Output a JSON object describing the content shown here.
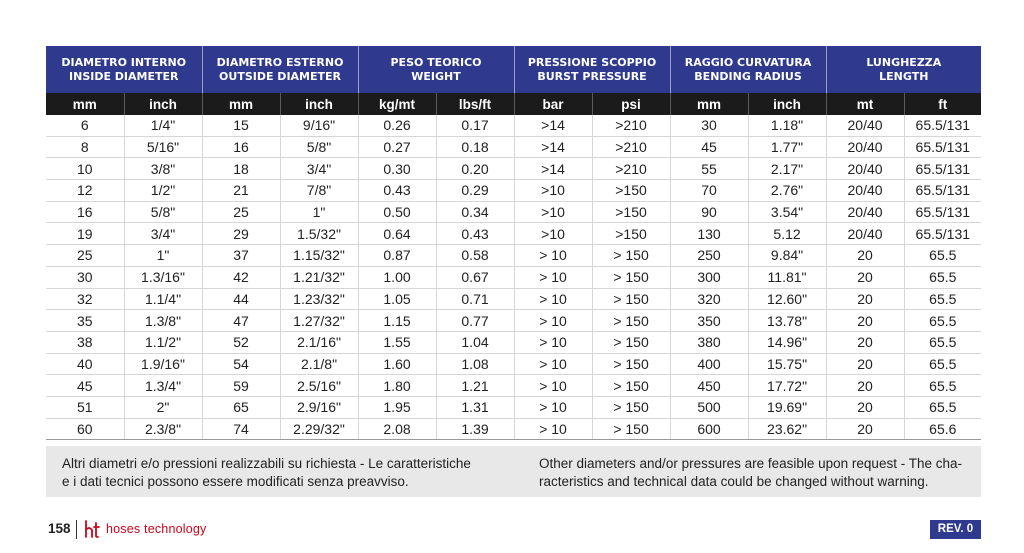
{
  "table": {
    "groups": [
      {
        "it": "DIAMETRO INTERNO",
        "en": "INSIDE DIAMETER"
      },
      {
        "it": "DIAMETRO ESTERNO",
        "en": "OUTSIDE DIAMETER"
      },
      {
        "it": "PESO TEORICO",
        "en": "WEIGHT"
      },
      {
        "it": "PRESSIONE SCOPPIO",
        "en": "BURST PRESSURE"
      },
      {
        "it": "RAGGIO CURVATURA",
        "en": "BENDING RADIUS"
      },
      {
        "it": "LUNGHEZZA",
        "en": "LENGTH"
      }
    ],
    "units": [
      "mm",
      "inch",
      "mm",
      "inch",
      "kg/mt",
      "lbs/ft",
      "bar",
      "psi",
      "mm",
      "inch",
      "mt",
      "ft"
    ],
    "rows": [
      [
        "6",
        "1/4\"",
        "15",
        "9/16\"",
        "0.26",
        "0.17",
        ">14",
        ">210",
        "30",
        "1.18\"",
        "20/40",
        "65.5/131"
      ],
      [
        "8",
        "5/16\"",
        "16",
        "5/8\"",
        "0.27",
        "0.18",
        ">14",
        ">210",
        "45",
        "1.77\"",
        "20/40",
        "65.5/131"
      ],
      [
        "10",
        "3/8\"",
        "18",
        "3/4\"",
        "0.30",
        "0.20",
        ">14",
        ">210",
        "55",
        "2.17\"",
        "20/40",
        "65.5/131"
      ],
      [
        "12",
        "1/2\"",
        "21",
        "7/8\"",
        "0.43",
        "0.29",
        ">10",
        ">150",
        "70",
        "2.76\"",
        "20/40",
        "65.5/131"
      ],
      [
        "16",
        "5/8\"",
        "25",
        "1\"",
        "0.50",
        "0.34",
        ">10",
        ">150",
        "90",
        "3.54\"",
        "20/40",
        "65.5/131"
      ],
      [
        "19",
        "3/4\"",
        "29",
        "1.5/32\"",
        "0.64",
        "0.43",
        ">10",
        ">150",
        "130",
        "5.12",
        "20/40",
        "65.5/131"
      ],
      [
        "25",
        "1\"",
        "37",
        "1.15/32\"",
        "0.87",
        "0.58",
        "> 10",
        "> 150",
        "250",
        "9.84\"",
        "20",
        "65.5"
      ],
      [
        "30",
        "1.3/16\"",
        "42",
        "1.21/32\"",
        "1.00",
        "0.67",
        "> 10",
        "> 150",
        "300",
        "11.81\"",
        "20",
        "65.5"
      ],
      [
        "32",
        "1.1/4\"",
        "44",
        "1.23/32\"",
        "1.05",
        "0.71",
        "> 10",
        "> 150",
        "320",
        "12.60\"",
        "20",
        "65.5"
      ],
      [
        "35",
        "1.3/8\"",
        "47",
        "1.27/32\"",
        "1.15",
        "0.77",
        "> 10",
        "> 150",
        "350",
        "13.78\"",
        "20",
        "65.5"
      ],
      [
        "38",
        "1.1/2\"",
        "52",
        "2.1/16\"",
        "1.55",
        "1.04",
        "> 10",
        "> 150",
        "380",
        "14.96\"",
        "20",
        "65.5"
      ],
      [
        "40",
        "1.9/16\"",
        "54",
        "2.1/8\"",
        "1.60",
        "1.08",
        "> 10",
        "> 150",
        "400",
        "15.75\"",
        "20",
        "65.5"
      ],
      [
        "45",
        "1.3/4\"",
        "59",
        "2.5/16\"",
        "1.80",
        "1.21",
        "> 10",
        "> 150",
        "450",
        "17.72\"",
        "20",
        "65.5"
      ],
      [
        "51",
        "2\"",
        "65",
        "2.9/16\"",
        "1.95",
        "1.31",
        "> 10",
        "> 150",
        "500",
        "19.69\"",
        "20",
        "65.5"
      ],
      [
        "60",
        "2.3/8\"",
        "74",
        "2.29/32\"",
        "2.08",
        "1.39",
        "> 10",
        "> 150",
        "600",
        "23.62\"",
        "20",
        "65.6"
      ]
    ]
  },
  "notes": {
    "it_line1": "Altri diametri e/o pressioni realizzabili su richiesta - Le caratteristiche",
    "it_line2": "e i dati tecnici possono essere modificati senza preavviso.",
    "en_line1": "Other diameters and/or pressures are feasible upon request - The cha-",
    "en_line2": "racteristics and technical data could be changed without warning."
  },
  "footer": {
    "page_number": "158",
    "brand": "hoses technology",
    "revision": "REV. 0",
    "colors": {
      "brand": "#d0021b",
      "accent": "#2f3a8f"
    },
    "logo_icon": "ht-logo-icon"
  }
}
